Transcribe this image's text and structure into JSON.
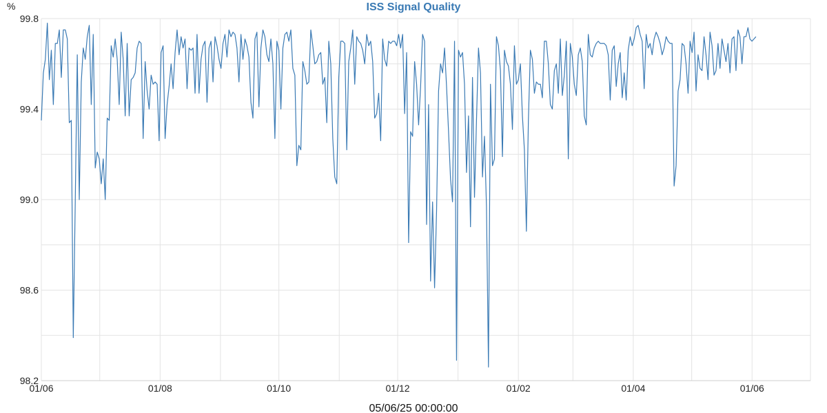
{
  "chart_data": {
    "type": "line",
    "title": "ISS Signal Quality",
    "unit_label": "%",
    "footer_label": "05/06/25 00:00:00",
    "ylim": [
      98.2,
      99.8
    ],
    "xlim": [
      "2024-06-01",
      "2025-07-01"
    ],
    "y_ticks": [
      "98.2",
      "98.6",
      "99.0",
      "99.4",
      "99.8"
    ],
    "x_ticks": [
      {
        "label": "01/06",
        "date": "2024-06-01"
      },
      {
        "label": "01/08",
        "date": "2024-08-01"
      },
      {
        "label": "01/10",
        "date": "2024-10-01"
      },
      {
        "label": "01/12",
        "date": "2024-12-01"
      },
      {
        "label": "01/02",
        "date": "2025-02-01"
      },
      {
        "label": "01/04",
        "date": "2025-04-01"
      },
      {
        "label": "01/06",
        "date": "2025-06-01"
      }
    ],
    "grid": true,
    "colors": {
      "line": "#3a7ab4",
      "title": "#3a7ab4",
      "grid": "#e3e3e3"
    },
    "series": [
      {
        "values": [
          99.35,
          99.56,
          99.62,
          99.78,
          99.53,
          99.66,
          99.42,
          99.69,
          99.69,
          99.75,
          99.54,
          99.75,
          99.75,
          99.71,
          99.34,
          99.35,
          98.39,
          99.0,
          99.64,
          99.0,
          99.52,
          99.67,
          99.62,
          99.72,
          99.77,
          99.42,
          99.73,
          99.14,
          99.21,
          99.18,
          99.07,
          99.18,
          99.0,
          99.36,
          99.35,
          99.68,
          99.63,
          99.71,
          99.62,
          99.42,
          99.74,
          99.62,
          99.37,
          99.69,
          99.37,
          99.53,
          99.54,
          99.56,
          99.67,
          99.7,
          99.69,
          99.27,
          99.61,
          99.48,
          99.4,
          99.55,
          99.51,
          99.52,
          99.51,
          99.26,
          99.65,
          99.68,
          99.27,
          99.42,
          99.5,
          99.6,
          99.49,
          99.65,
          99.75,
          99.64,
          99.72,
          99.67,
          99.71,
          99.49,
          99.67,
          99.66,
          99.67,
          99.47,
          99.73,
          99.47,
          99.62,
          99.68,
          99.7,
          99.43,
          99.67,
          99.7,
          99.52,
          99.72,
          99.68,
          99.62,
          99.58,
          99.69,
          99.73,
          99.63,
          99.75,
          99.72,
          99.74,
          99.73,
          99.67,
          99.52,
          99.73,
          99.62,
          99.71,
          99.68,
          99.63,
          99.43,
          99.36,
          99.71,
          99.74,
          99.41,
          99.67,
          99.75,
          99.72,
          99.64,
          99.61,
          99.71,
          99.6,
          99.27,
          99.7,
          99.66,
          99.4,
          99.67,
          99.73,
          99.74,
          99.7,
          99.75,
          99.58,
          99.55,
          99.15,
          99.24,
          99.22,
          99.61,
          99.57,
          99.51,
          99.52,
          99.75,
          99.68,
          99.6,
          99.61,
          99.64,
          99.65,
          99.51,
          99.54,
          99.34,
          99.7,
          99.6,
          99.27,
          99.1,
          99.07,
          99.54,
          99.7,
          99.7,
          99.69,
          99.22,
          99.61,
          99.67,
          99.75,
          99.51,
          99.72,
          99.7,
          99.69,
          99.66,
          99.6,
          99.73,
          99.68,
          99.7,
          99.61,
          99.36,
          99.38,
          99.47,
          99.26,
          99.71,
          99.62,
          99.59,
          99.7,
          99.69,
          99.7,
          99.7,
          99.68,
          99.73,
          99.67,
          99.73,
          99.38,
          99.65,
          98.81,
          99.3,
          99.28,
          99.61,
          99.51,
          99.33,
          99.5,
          99.73,
          99.7,
          98.89,
          99.42,
          98.64,
          98.99,
          98.61,
          98.95,
          99.48,
          99.6,
          99.56,
          99.67,
          99.5,
          99.3,
          99.09,
          98.99,
          99.7,
          98.29,
          99.66,
          99.63,
          99.65,
          99.51,
          99.12,
          99.37,
          98.88,
          99.54,
          99.01,
          99.35,
          99.67,
          99.56,
          99.1,
          99.28,
          98.97,
          98.26,
          99.51,
          99.15,
          99.18,
          99.72,
          99.68,
          99.57,
          99.19,
          99.66,
          99.61,
          99.59,
          99.51,
          99.31,
          99.68,
          99.51,
          99.53,
          99.6,
          99.37,
          99.22,
          98.86,
          99.35,
          99.66,
          99.62,
          99.47,
          99.52,
          99.51,
          99.51,
          99.45,
          99.7,
          99.7,
          99.6,
          99.42,
          99.4,
          99.57,
          99.6,
          99.47,
          99.71,
          99.46,
          99.55,
          99.7,
          99.18,
          99.69,
          99.63,
          99.51,
          99.46,
          99.64,
          99.67,
          99.61,
          99.37,
          99.33,
          99.73,
          99.64,
          99.63,
          99.67,
          99.69,
          99.7,
          99.69,
          99.69,
          99.69,
          99.68,
          99.64,
          99.44,
          99.66,
          99.68,
          99.5,
          99.6,
          99.65,
          99.45,
          99.56,
          99.44,
          99.66,
          99.72,
          99.68,
          99.71,
          99.76,
          99.77,
          99.73,
          99.7,
          99.49,
          99.73,
          99.67,
          99.69,
          99.64,
          99.71,
          99.74,
          99.72,
          99.69,
          99.64,
          99.67,
          99.72,
          99.7,
          99.69,
          99.69,
          99.06,
          99.15,
          99.48,
          99.53,
          99.69,
          99.68,
          99.6,
          99.47,
          99.7,
          99.65,
          99.74,
          99.48,
          99.64,
          99.58,
          99.57,
          99.72,
          99.64,
          99.53,
          99.74,
          99.68,
          99.55,
          99.57,
          99.69,
          99.58,
          99.71,
          99.66,
          99.61,
          99.69,
          99.56,
          99.71,
          99.72,
          99.57,
          99.75,
          99.72,
          99.6,
          99.72,
          99.72,
          99.76,
          99.71,
          99.7,
          99.71,
          99.72
        ]
      }
    ]
  }
}
